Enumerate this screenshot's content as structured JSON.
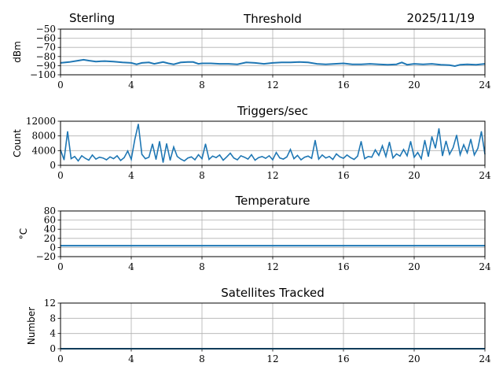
{
  "header": {
    "station": "Sterling",
    "date": "2025/11/19"
  },
  "chart_data": [
    {
      "type": "line",
      "title": "Threshold",
      "xlabel": "",
      "ylabel": "dBm",
      "xlim": [
        0,
        24
      ],
      "ylim": [
        -100,
        -50
      ],
      "xticks": [
        "0",
        "4",
        "8",
        "12",
        "16",
        "20",
        "24"
      ],
      "yticks": [
        "−100",
        "−90",
        "−80",
        "−70",
        "−60",
        "−50"
      ],
      "ytick_values": [
        -100,
        -90,
        -80,
        -70,
        -60,
        -50
      ],
      "grid": true,
      "x": [
        0,
        0.5,
        1,
        1.3,
        1.6,
        2,
        2.5,
        3,
        3.5,
        4,
        4.3,
        4.6,
        5,
        5.3,
        5.8,
        6.1,
        6.4,
        6.8,
        7.2,
        7.5,
        7.8,
        8,
        8.5,
        9,
        9.5,
        10,
        10.5,
        11,
        11.5,
        12,
        12.5,
        13,
        13.5,
        14,
        14.5,
        15,
        15.5,
        16,
        16.5,
        17,
        17.5,
        18,
        18.5,
        19,
        19.3,
        19.6,
        20,
        20.5,
        21,
        21.5,
        22,
        22.3,
        22.6,
        23,
        23.5,
        24
      ],
      "y": [
        -87,
        -86,
        -84.5,
        -83.5,
        -84.5,
        -85.5,
        -85,
        -85.5,
        -86.5,
        -87,
        -88.5,
        -87,
        -86.5,
        -88,
        -86,
        -87.5,
        -88.5,
        -86.5,
        -86,
        -86,
        -88,
        -87.5,
        -87.5,
        -88,
        -88,
        -88.5,
        -86.5,
        -87,
        -88,
        -87,
        -86.5,
        -86.5,
        -86,
        -86.5,
        -88,
        -88.5,
        -88,
        -87.5,
        -88.5,
        -88.5,
        -88,
        -88.5,
        -89,
        -88.5,
        -86.5,
        -89,
        -88,
        -88.5,
        -88,
        -89,
        -89.5,
        -90.5,
        -89,
        -88.5,
        -89,
        -88
      ]
    },
    {
      "type": "line",
      "title": "Triggers/sec",
      "xlabel": "",
      "ylabel": "Count",
      "xlim": [
        0,
        24
      ],
      "ylim": [
        0,
        12000
      ],
      "xticks": [
        "0",
        "4",
        "8",
        "12",
        "16",
        "20",
        "24"
      ],
      "yticks": [
        "0",
        "4000",
        "8000",
        "12000"
      ],
      "ytick_values": [
        0,
        4000,
        8000,
        12000
      ],
      "grid": true,
      "x_step": 0.2,
      "y": [
        4200,
        1500,
        9200,
        1800,
        2400,
        1200,
        2600,
        1900,
        1400,
        2800,
        1700,
        2200,
        2000,
        1500,
        2300,
        1800,
        2600,
        1300,
        2100,
        3900,
        1600,
        7000,
        11200,
        3000,
        1800,
        2200,
        5800,
        1600,
        6500,
        800,
        5900,
        1400,
        5000,
        2400,
        1700,
        1200,
        2000,
        2300,
        1500,
        2900,
        1800,
        5800,
        1600,
        2500,
        2100,
        2800,
        1400,
        2300,
        3300,
        2000,
        1500,
        2600,
        2200,
        1700,
        2900,
        1400,
        2100,
        2400,
        1900,
        2600,
        1500,
        3500,
        2000,
        1700,
        2300,
        4300,
        1800,
        2700,
        1500,
        2200,
        2500,
        1900,
        6800,
        1700,
        2800,
        2000,
        2400,
        1600,
        3100,
        2300,
        1900,
        2800,
        2100,
        1600,
        2500,
        6500,
        1800,
        2400,
        2200,
        4200,
        2700,
        5300,
        2400,
        6300,
        2000,
        3100,
        2500,
        4300,
        2600,
        6500,
        2200,
        3500,
        1800,
        6800,
        2400,
        7800,
        4700,
        10000,
        2600,
        6600,
        3000,
        4800,
        8200,
        2900,
        5600,
        3400,
        7100,
        2800,
        4600,
        9200,
        3000
      ]
    },
    {
      "type": "line",
      "title": "Temperature",
      "xlabel": "",
      "ylabel": "°C",
      "xlim": [
        0,
        24
      ],
      "ylim": [
        -20,
        80
      ],
      "xticks": [
        "0",
        "4",
        "8",
        "12",
        "16",
        "20",
        "24"
      ],
      "yticks": [
        "−20",
        "0",
        "20",
        "40",
        "60",
        "80"
      ],
      "ytick_values": [
        -20,
        0,
        20,
        40,
        60,
        80
      ],
      "grid": true,
      "x": [
        0,
        24
      ],
      "y": [
        4,
        4
      ]
    },
    {
      "type": "line",
      "title": "Satellites Tracked",
      "xlabel": "",
      "ylabel": "Number",
      "xlim": [
        0,
        24
      ],
      "ylim": [
        0,
        12
      ],
      "xticks": [
        "0",
        "4",
        "8",
        "12",
        "16",
        "20",
        "24"
      ],
      "yticks": [
        "0",
        "4",
        "8",
        "12"
      ],
      "ytick_values": [
        0,
        4,
        8,
        12
      ],
      "grid": true,
      "x": [
        0,
        24
      ],
      "y": [
        0,
        0
      ]
    }
  ],
  "colors": {
    "line": "#1f77b4",
    "grid": "#b0b0b0"
  }
}
